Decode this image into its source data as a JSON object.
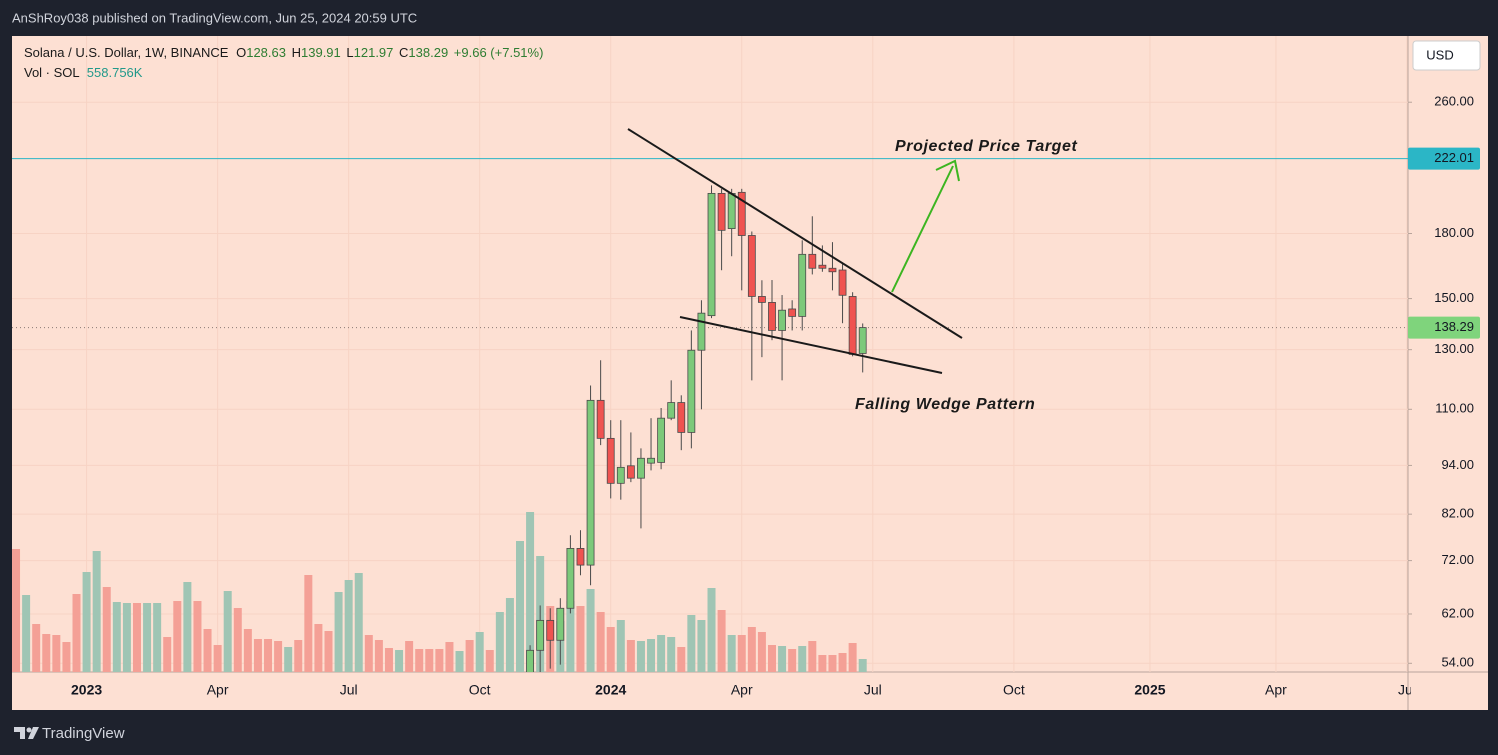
{
  "header": "AnShRoy038 published on TradingView.com, Jun 25, 2024 20:59 UTC",
  "footer": "TradingView",
  "chart_data": {
    "type": "candlestick",
    "legend": {
      "symbol": "Solana / U.S. Dollar, 1W, BINANCE",
      "fields": [
        {
          "key": "O",
          "value": 128.63
        },
        {
          "key": "H",
          "value": 139.91
        },
        {
          "key": "L",
          "value": 121.97
        },
        {
          "key": "C",
          "value": 138.29
        }
      ],
      "change": "+9.66 (+7.51%)",
      "volume_name": "Vol · SOL",
      "volume": {
        "value": 558.756,
        "label": "558.756K"
      }
    },
    "currency": "USD",
    "log_scale": true,
    "grid": true,
    "ylim": [
      52.7,
      313
    ],
    "yticks": [
      {
        "value": 260,
        "label": "260.00"
      },
      {
        "value": 180,
        "label": "180.00"
      },
      {
        "value": 150,
        "label": "150.00"
      },
      {
        "value": 130,
        "label": "130.00"
      },
      {
        "value": 110,
        "label": "110.00"
      },
      {
        "value": 94,
        "label": "94.00"
      },
      {
        "value": 82,
        "label": "82.00"
      },
      {
        "value": 72,
        "label": "72.00"
      },
      {
        "value": 62,
        "label": "62.00"
      },
      {
        "value": 54,
        "label": "54.00"
      }
    ],
    "xlim": [
      -0.4,
      138.1
    ],
    "xticks": [
      {
        "value": 7,
        "label": "2023"
      },
      {
        "value": 20,
        "label": "Apr"
      },
      {
        "value": 33,
        "label": "Jul"
      },
      {
        "value": 46,
        "label": "Oct"
      },
      {
        "value": 59,
        "label": "2024"
      },
      {
        "value": 72,
        "label": "Apr"
      },
      {
        "value": 85,
        "label": "Jul"
      },
      {
        "value": 99,
        "label": "Oct"
      },
      {
        "value": 112.5,
        "label": "2025"
      },
      {
        "value": 125,
        "label": "Apr"
      },
      {
        "value": 138,
        "label": "Jul"
      }
    ],
    "up_color": "#7cc97a",
    "down_color": "#ef5350",
    "candles": {
      "x": [
        51,
        52,
        53,
        54,
        55,
        56,
        57,
        58,
        59,
        60,
        61,
        62,
        63,
        64,
        65,
        66,
        67,
        68,
        69,
        70,
        71,
        72,
        73,
        74,
        75,
        76,
        77,
        78,
        79,
        80,
        81,
        82,
        83,
        84
      ],
      "open": [
        44,
        56,
        60.9,
        57.6,
        63,
        74.5,
        71.1,
        112.8,
        101.4,
        89.4,
        93.9,
        90.7,
        94.6,
        94.8,
        107.3,
        112.1,
        103.1,
        129.8,
        143,
        201.4,
        182.5,
        202,
        179,
        150.9,
        148.4,
        137.2,
        145.7,
        142.7,
        169.8,
        164.7,
        163.3,
        162.5,
        150.9,
        128.63
      ],
      "high": [
        56.8,
        63.5,
        63,
        64.8,
        77.3,
        78.4,
        117.6,
        126.2,
        106.7,
        106.7,
        103.1,
        98.6,
        107.3,
        110.4,
        119.3,
        114.4,
        137.2,
        149.3,
        206,
        204,
        204,
        204,
        181,
        157.9,
        158,
        151.5,
        149.3,
        176.6,
        188.9,
        174.1,
        175.7,
        166,
        152.7,
        139.91
      ],
      "low": [
        38,
        52,
        53.2,
        53.8,
        62.1,
        69.1,
        67.2,
        99.5,
        85.7,
        85.4,
        89.7,
        78.8,
        92.7,
        93,
        106.7,
        98.1,
        98.6,
        110,
        142,
        162.4,
        168.9,
        153.5,
        119.3,
        127.3,
        133.5,
        119.3,
        137.2,
        137.2,
        160.5,
        161.7,
        153.5,
        140,
        127.6,
        121.97
      ],
      "close": [
        56,
        60.9,
        57.6,
        63,
        74.5,
        71.1,
        112.8,
        101.4,
        89.4,
        93.5,
        90.7,
        95.9,
        95.9,
        107.3,
        112.1,
        103.1,
        129.8,
        144,
        201.4,
        181.6,
        201.4,
        179,
        150.9,
        148.4,
        137.2,
        145.2,
        142.7,
        169.8,
        163.3,
        163.3,
        161.7,
        151.4,
        128.3,
        138.29
      ]
    },
    "volume": {
      "vlim": [
        0,
        27348
      ],
      "values": [
        5289,
        3311,
        2064,
        1634,
        1591,
        1290,
        3354,
        4300,
        5203,
        3655,
        3010,
        2967,
        2967,
        2967,
        2967,
        1505,
        3053,
        3870,
        3053,
        1849,
        1161,
        3483,
        2752,
        1849,
        1419,
        1419,
        1333,
        1075,
        1376,
        4171,
        2064,
        1763,
        3440,
        3956,
        4257,
        1591,
        1376,
        1032,
        946,
        1333,
        989,
        989,
        989,
        1290,
        903,
        1376,
        1720,
        946,
        2580,
        3182,
        5633,
        6880,
        4988,
        2838,
        2193,
        3053,
        2838,
        3569,
        2580,
        1935,
        2236,
        1376,
        1333,
        1419,
        1591,
        1505,
        1075,
        2451,
        2236,
        3612,
        2666,
        1591,
        1591,
        1935,
        1720,
        1161,
        1118,
        989,
        1118,
        1333,
        731,
        731,
        817,
        1247,
        558.756
      ],
      "colors": [
        "#f4a096",
        "#9fc5b4",
        "#f4a096",
        "#f4a096",
        "#f4a096",
        "#f4a096",
        "#f4a096",
        "#9fc5b4",
        "#9fc5b4",
        "#f4a096",
        "#9fc5b4",
        "#9fc5b4",
        "#f4a096",
        "#9fc5b4",
        "#9fc5b4",
        "#f4a096",
        "#f4a096",
        "#9fc5b4",
        "#f4a096",
        "#f4a096",
        "#f4a096",
        "#9fc5b4",
        "#f4a096",
        "#f4a096",
        "#f4a096",
        "#f4a096",
        "#f4a096",
        "#9fc5b4",
        "#f4a096",
        "#f4a096",
        "#f4a096",
        "#f4a096",
        "#9fc5b4",
        "#9fc5b4",
        "#9fc5b4",
        "#f4a096",
        "#f4a096",
        "#f4a096",
        "#9fc5b4",
        "#f4a096",
        "#f4a096",
        "#f4a096",
        "#f4a096",
        "#f4a096",
        "#9fc5b4",
        "#f4a096",
        "#9fc5b4",
        "#f4a096",
        "#9fc5b4",
        "#9fc5b4",
        "#9fc5b4",
        "#9fc5b4",
        "#9fc5b4",
        "#f4a096",
        "#9fc5b4",
        "#9fc5b4",
        "#f4a096",
        "#9fc5b4",
        "#f4a096",
        "#f4a096",
        "#9fc5b4",
        "#f4a096",
        "#9fc5b4",
        "#9fc5b4",
        "#9fc5b4",
        "#9fc5b4",
        "#f4a096",
        "#9fc5b4",
        "#9fc5b4",
        "#9fc5b4",
        "#f4a096",
        "#9fc5b4",
        "#f4a096",
        "#f4a096",
        "#f4a096",
        "#f4a096",
        "#9fc5b4",
        "#f4a096",
        "#9fc5b4",
        "#f4a096",
        "#f4a096",
        "#f4a096",
        "#f4a096",
        "#f4a096",
        "#9fc5b4"
      ]
    },
    "level": {
      "value": 222.01,
      "color": "#2bb6c6"
    },
    "last_price_color": "#7fd47c",
    "annotations": [
      "Projected Price Target",
      "Falling Wedge Pattern"
    ]
  }
}
